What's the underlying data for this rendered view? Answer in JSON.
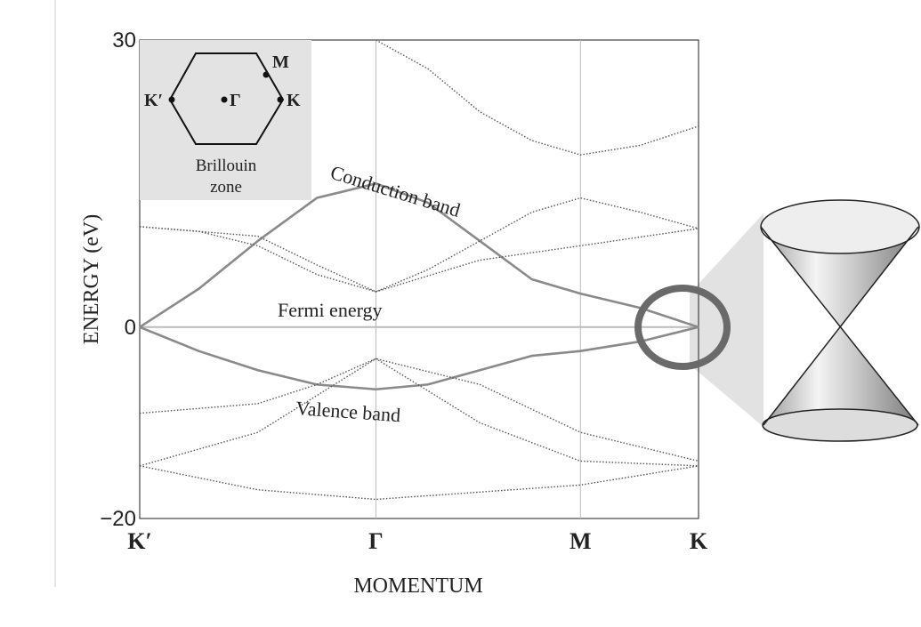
{
  "chart_data": {
    "type": "line",
    "y_label": "ENERGY (eV)",
    "x_label": "MOMENTUM",
    "xlim": [
      0,
      2.366
    ],
    "xticks": [
      {
        "value": 0,
        "label": "K′"
      },
      {
        "value": 1,
        "label": "Γ"
      },
      {
        "value": 1.866,
        "label": "M"
      },
      {
        "value": 2.366,
        "label": "K"
      }
    ],
    "ylim": [
      -20,
      30
    ],
    "yticks": [
      {
        "value": -20,
        "label": "−20"
      },
      0,
      30
    ],
    "series": [
      {
        "name": "Conduction band",
        "color": "#8a8a8a",
        "style": "solid",
        "x": [
          0,
          0.25,
          0.5,
          0.75,
          1,
          1.22,
          1.44,
          1.66,
          1.866,
          2.12,
          2.366
        ],
        "values": [
          0,
          4,
          9,
          13.5,
          15,
          13,
          9,
          5,
          3.5,
          2,
          0
        ]
      },
      {
        "name": "Valence band",
        "color": "#8a8a8a",
        "style": "solid",
        "x": [
          0,
          0.25,
          0.5,
          0.75,
          1,
          1.22,
          1.44,
          1.66,
          1.866,
          2.12,
          2.366
        ],
        "values": [
          0,
          -2.5,
          -4.5,
          -6,
          -6.5,
          -6,
          -4.5,
          -3,
          -2.5,
          -1.5,
          0
        ]
      },
      {
        "color": "#555555",
        "style": "dotted",
        "x": [
          1,
          1.22,
          1.44,
          1.66,
          1.866,
          2.12,
          2.366
        ],
        "values": [
          30,
          27,
          22.5,
          19.5,
          18,
          19,
          21
        ]
      },
      {
        "color": "#555555",
        "style": "dotted",
        "x": [
          0,
          0.25,
          0.5,
          0.75,
          1,
          1.22,
          1.44,
          1.66,
          1.866,
          2.12,
          2.366
        ],
        "values": [
          10.5,
          10,
          8.5,
          5.5,
          3.7,
          6,
          9,
          12,
          13.5,
          12,
          10.3
        ]
      },
      {
        "color": "#555555",
        "style": "dotted",
        "x": [
          0,
          0.5,
          0.75,
          1,
          1.44,
          1.866,
          2.366
        ],
        "values": [
          10.5,
          9.5,
          6.5,
          3.7,
          7,
          8.5,
          10.3
        ]
      },
      {
        "color": "#555555",
        "style": "dotted",
        "x": [
          0,
          0.5,
          0.75,
          1,
          1.44,
          1.866,
          2.366
        ],
        "values": [
          -9,
          -8,
          -6,
          -3.3,
          -6,
          -11,
          -14
        ]
      },
      {
        "color": "#555555",
        "style": "dotted",
        "x": [
          0,
          0.5,
          1,
          1.44,
          1.866,
          2.366
        ],
        "values": [
          -14.5,
          -11,
          -3.3,
          -10,
          -14,
          -14.5
        ]
      },
      {
        "color": "#555555",
        "style": "dotted",
        "x": [
          0,
          0.5,
          1,
          1.866,
          2.366
        ],
        "values": [
          -14.5,
          -17,
          -18,
          -16.5,
          -14.5
        ]
      }
    ],
    "annotations": [
      "Conduction band",
      "Fermi energy",
      "Valence band"
    ],
    "inset": {
      "points": [
        "M",
        "K",
        "K′",
        "Γ"
      ],
      "caption": [
        "Brillouin",
        "zone"
      ]
    }
  }
}
